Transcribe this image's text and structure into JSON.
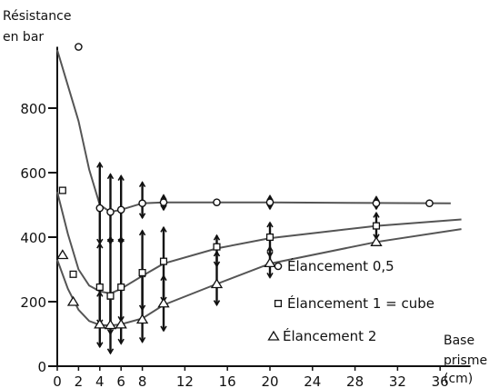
{
  "chart_data": {
    "type": "line",
    "title": "",
    "ylabel": [
      "Résistance",
      "en bar"
    ],
    "xlabel": [
      "Base",
      "prisme",
      "(cm)"
    ],
    "xlim": [
      0,
      38
    ],
    "ylim": [
      0,
      1000
    ],
    "xticks": [
      0,
      2,
      4,
      6,
      8,
      12,
      16,
      20,
      24,
      28,
      32,
      36
    ],
    "yticks": [
      0,
      200,
      400,
      600,
      800
    ],
    "grid": false,
    "legend_position": "right",
    "series": [
      {
        "name": "Élancement 0,5",
        "marker": "circle",
        "markers": [
          {
            "x": 2,
            "y": 990
          },
          {
            "x": 4,
            "y": 490
          },
          {
            "x": 5,
            "y": 478
          },
          {
            "x": 6,
            "y": 485
          },
          {
            "x": 8,
            "y": 505
          },
          {
            "x": 10,
            "y": 508
          },
          {
            "x": 15,
            "y": 508
          },
          {
            "x": 20,
            "y": 508
          },
          {
            "x": 30,
            "y": 505
          },
          {
            "x": 35,
            "y": 505
          }
        ],
        "curve": [
          [
            0,
            980
          ],
          [
            1,
            870
          ],
          [
            2,
            760
          ],
          [
            3,
            610
          ],
          [
            4,
            500
          ],
          [
            5,
            478
          ],
          [
            6,
            485
          ],
          [
            8,
            505
          ],
          [
            10,
            508
          ],
          [
            15,
            508
          ],
          [
            20,
            508
          ],
          [
            30,
            506
          ],
          [
            37,
            505
          ]
        ],
        "error_bars": [
          {
            "x": 4,
            "low": 380,
            "high": 630
          },
          {
            "x": 5,
            "low": 380,
            "high": 595
          },
          {
            "x": 6,
            "low": 380,
            "high": 590
          },
          {
            "x": 8,
            "low": 460,
            "high": 570
          },
          {
            "x": 10,
            "low": 485,
            "high": 530
          },
          {
            "x": 20,
            "low": 488,
            "high": 528
          },
          {
            "x": 30,
            "low": 488,
            "high": 525
          }
        ]
      },
      {
        "name": "Élancement 1 = cube",
        "marker": "square",
        "markers": [
          {
            "x": 0.5,
            "y": 545
          },
          {
            "x": 1.5,
            "y": 285
          },
          {
            "x": 4,
            "y": 245
          },
          {
            "x": 5,
            "y": 218
          },
          {
            "x": 6,
            "y": 245
          },
          {
            "x": 8,
            "y": 290
          },
          {
            "x": 10,
            "y": 325
          },
          {
            "x": 15,
            "y": 370
          },
          {
            "x": 20,
            "y": 400
          },
          {
            "x": 30,
            "y": 435
          }
        ],
        "curve": [
          [
            0,
            540
          ],
          [
            1,
            410
          ],
          [
            2,
            300
          ],
          [
            3,
            250
          ],
          [
            4,
            232
          ],
          [
            5,
            225
          ],
          [
            6,
            240
          ],
          [
            8,
            280
          ],
          [
            10,
            318
          ],
          [
            15,
            365
          ],
          [
            20,
            397
          ],
          [
            30,
            435
          ],
          [
            38,
            455
          ]
        ],
        "error_bars": [
          {
            "x": 4,
            "low": 130,
            "high": 380
          },
          {
            "x": 5,
            "low": 100,
            "high": 400
          },
          {
            "x": 6,
            "low": 140,
            "high": 400
          },
          {
            "x": 8,
            "low": 175,
            "high": 420
          },
          {
            "x": 10,
            "low": 200,
            "high": 430
          },
          {
            "x": 15,
            "low": 310,
            "high": 405
          },
          {
            "x": 20,
            "low": 340,
            "high": 445
          },
          {
            "x": 30,
            "low": 395,
            "high": 475
          }
        ]
      },
      {
        "name": "Élancement 2",
        "marker": "triangle",
        "markers": [
          {
            "x": 0.5,
            "y": 345
          },
          {
            "x": 1.5,
            "y": 200
          },
          {
            "x": 4,
            "y": 130
          },
          {
            "x": 5,
            "y": 128
          },
          {
            "x": 6,
            "y": 130
          },
          {
            "x": 8,
            "y": 145
          },
          {
            "x": 10,
            "y": 195
          },
          {
            "x": 15,
            "y": 255
          },
          {
            "x": 20,
            "y": 320
          },
          {
            "x": 30,
            "y": 385
          }
        ],
        "curve": [
          [
            0,
            330
          ],
          [
            1,
            240
          ],
          [
            2,
            175
          ],
          [
            3,
            140
          ],
          [
            4,
            128
          ],
          [
            5,
            126
          ],
          [
            6,
            130
          ],
          [
            8,
            148
          ],
          [
            10,
            190
          ],
          [
            15,
            255
          ],
          [
            20,
            318
          ],
          [
            30,
            385
          ],
          [
            38,
            425
          ]
        ],
        "error_bars": [
          {
            "x": 4,
            "low": 60,
            "high": 230
          },
          {
            "x": 5,
            "low": 40,
            "high": 220
          },
          {
            "x": 6,
            "low": 70,
            "high": 250
          },
          {
            "x": 8,
            "low": 75,
            "high": 290
          },
          {
            "x": 10,
            "low": 110,
            "high": 280
          },
          {
            "x": 15,
            "low": 190,
            "high": 355
          },
          {
            "x": 20,
            "low": 275,
            "high": 370
          }
        ]
      }
    ]
  },
  "colors": {
    "ink": "#111111",
    "curve": "#555555",
    "background": "#ffffff"
  }
}
